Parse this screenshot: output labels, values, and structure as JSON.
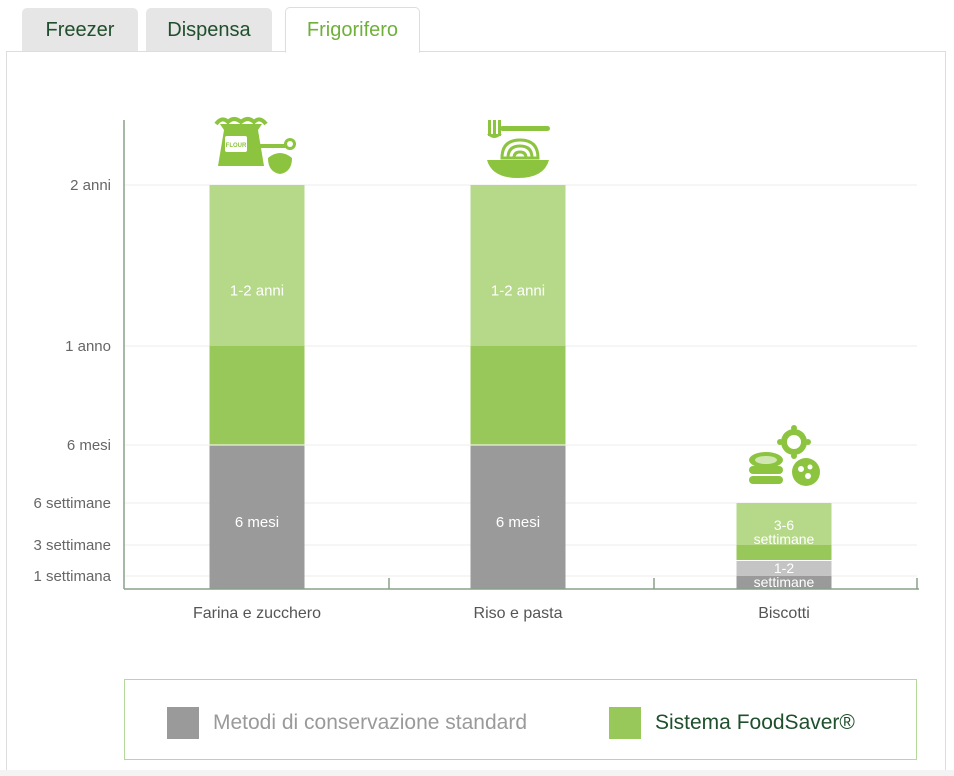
{
  "tabs": [
    {
      "label": "Freezer",
      "active": false
    },
    {
      "label": "Dispensa",
      "active": false
    },
    {
      "label": "Frigorifero",
      "active": true
    }
  ],
  "colors": {
    "standard": "#9a9a9a",
    "foodsaver_dark": "#98c85a",
    "foodsaver_light": "#b5d988",
    "icon": "#8cc43f",
    "text_dark": "#1f4f2c",
    "accent": "#6fb03a"
  },
  "chart_data": {
    "type": "bar",
    "stacked": true,
    "y_ticks": [
      {
        "label": "1 settimana",
        "value": 1
      },
      {
        "label": "3 settimane",
        "value": 3
      },
      {
        "label": "6 settimane",
        "value": 6
      },
      {
        "label": "6 mesi",
        "value": 26
      },
      {
        "label": "1 anno",
        "value": 52
      },
      {
        "label": "2 anni",
        "value": 104
      }
    ],
    "categories": [
      "Farina e zucchero",
      "Riso e pasta",
      "Biscotti"
    ],
    "series": [
      {
        "name": "Metodi di conservazione standard",
        "values": [
          "6 mesi",
          "6 mesi",
          "1-2 settimane"
        ]
      },
      {
        "name": "Sistema FoodSaver®",
        "values": [
          "1-2 anni",
          "1-2 anni",
          "3-6 settimane"
        ]
      }
    ],
    "bars": [
      {
        "category": "Farina e zucchero",
        "icon": "flour-sack-icon",
        "segments": [
          {
            "series": "standard",
            "from": 0,
            "to": 26,
            "label": "6 mesi"
          },
          {
            "series": "foodsaver",
            "from": 26,
            "to": 104,
            "split": 52,
            "label": "1-2 anni"
          }
        ]
      },
      {
        "category": "Riso e pasta",
        "icon": "pasta-plate-icon",
        "segments": [
          {
            "series": "standard",
            "from": 0,
            "to": 26,
            "label": "6 mesi"
          },
          {
            "series": "foodsaver",
            "from": 26,
            "to": 104,
            "split": 52,
            "label": "1-2 anni"
          }
        ]
      },
      {
        "category": "Biscotti",
        "icon": "cookies-icon",
        "segments": [
          {
            "series": "standard",
            "from": 0,
            "to": 2,
            "split": 1,
            "label": "1-2 settimane"
          },
          {
            "series": "foodsaver",
            "from": 2,
            "to": 6,
            "split": 3,
            "label": "3-6 settimane"
          }
        ]
      }
    ],
    "legend": {
      "placement": "bottom",
      "standard_label": "Metodi di conservazione standard",
      "foodsaver_label": "Sistema FoodSaver®"
    },
    "grid": true
  }
}
